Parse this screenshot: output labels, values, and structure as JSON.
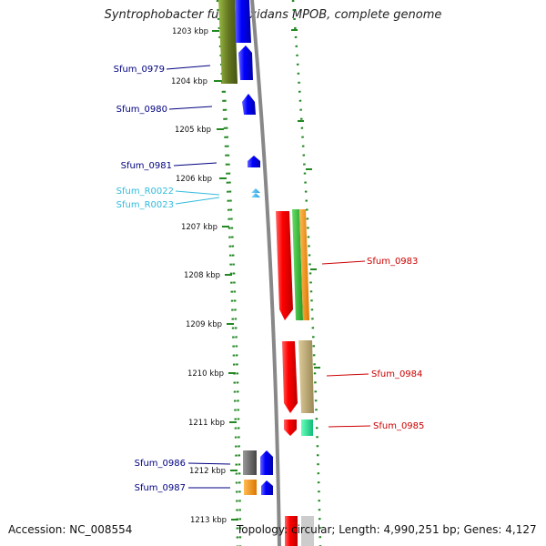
{
  "title": "Syntrophobacter fumaroxidans MPOB, complete genome",
  "footer": {
    "accession": "Accession: NC_008554",
    "topology": "Topology: circular; Length: 4,990,251 bp; Genes: 4,127"
  },
  "scale_labels": [
    "1203 kbp",
    "1204 kbp",
    "1205 kbp",
    "1206 kbp",
    "1207 kbp",
    "1208 kbp",
    "1209 kbp",
    "1210 kbp",
    "1211 kbp",
    "1212 kbp",
    "1213 kbp"
  ],
  "genes_left": [
    {
      "label": "Sfum_0979",
      "color": "#000080"
    },
    {
      "label": "Sfum_0980",
      "color": "#000080"
    },
    {
      "label": "Sfum_0981",
      "color": "#000080"
    },
    {
      "label": "Sfum_R0022",
      "color": "#33bbdd"
    },
    {
      "label": "Sfum_R0023",
      "color": "#33bbdd"
    },
    {
      "label": "Sfum_0986",
      "color": "#000080"
    },
    {
      "label": "Sfum_0987",
      "color": "#000080"
    }
  ],
  "genes_right": [
    {
      "label": "Sfum_0983",
      "color": "#cc0000"
    },
    {
      "label": "Sfum_0984",
      "color": "#cc0000"
    },
    {
      "label": "Sfum_0985",
      "color": "#cc0000"
    }
  ],
  "colors": {
    "forward": "#0000ff",
    "reverse": "#ff0000",
    "rna": "#33bbdd",
    "tick_dots": "#228822",
    "backbone": "#888888"
  }
}
